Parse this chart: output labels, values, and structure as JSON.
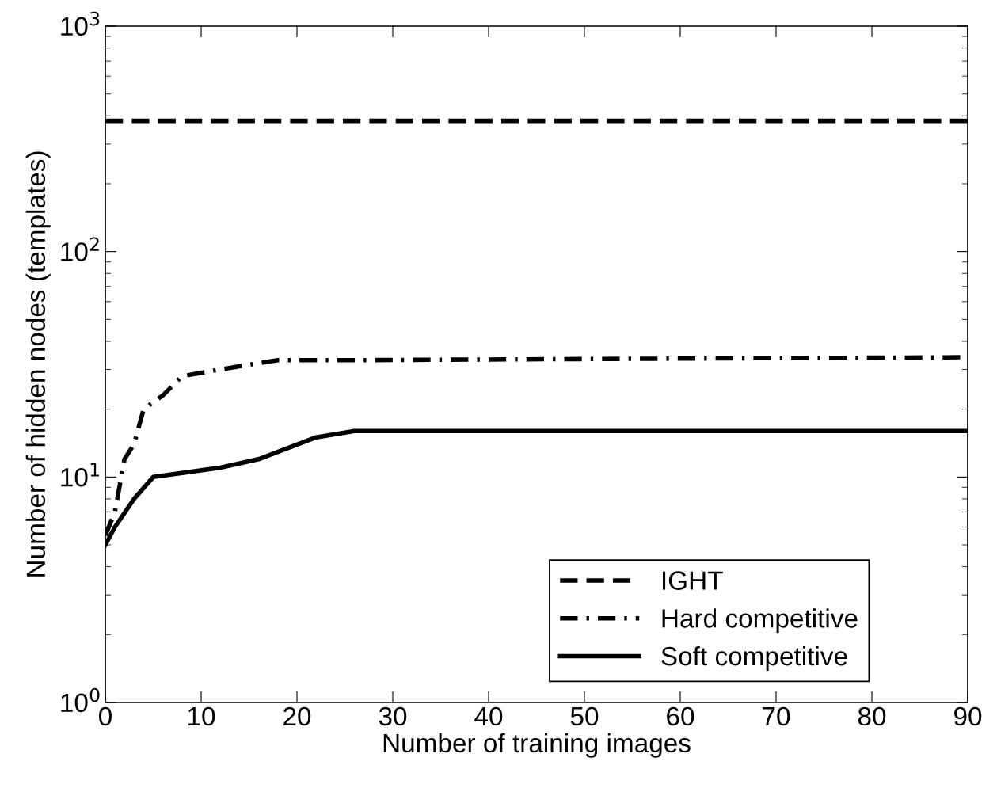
{
  "chart_data": {
    "type": "line",
    "xlabel": "Number of training images",
    "ylabel": "Number of hidden nodes (templates)",
    "log": "y",
    "grid": false,
    "legend": "bottom right",
    "xlim": [
      0,
      90
    ],
    "xticks": [
      0,
      10,
      20,
      30,
      40,
      50,
      60,
      70,
      80,
      90
    ],
    "ylim": [
      1,
      1000
    ],
    "yticks": [
      {
        "value": 1,
        "label": "10$^{0}$"
      },
      {
        "value": 10,
        "label": "10$^{1}$"
      },
      {
        "value": 100,
        "label": "10$^{2}$"
      },
      {
        "value": 1000,
        "label": "10$^{3}$"
      }
    ],
    "series": [
      {
        "name": "IGHT",
        "color": "#000000",
        "line_style": "dashed",
        "x": [
          0,
          90
        ],
        "values": [
          380,
          380
        ]
      },
      {
        "name": "Hard competitive",
        "color": "#000000",
        "line_style": "dashdot",
        "x": [
          0,
          1,
          2,
          3,
          4,
          6,
          8,
          12,
          16,
          18,
          26,
          90
        ],
        "values": [
          5.5,
          7,
          12,
          14,
          20,
          23,
          28,
          30,
          32,
          33,
          33,
          34
        ]
      },
      {
        "name": "Soft competitive",
        "color": "#000000",
        "line_style": "solid",
        "x": [
          0,
          1,
          3,
          5,
          12,
          16,
          22,
          26,
          90
        ],
        "values": [
          5,
          6,
          8,
          10,
          11,
          12,
          15,
          16,
          16
        ]
      }
    ]
  }
}
